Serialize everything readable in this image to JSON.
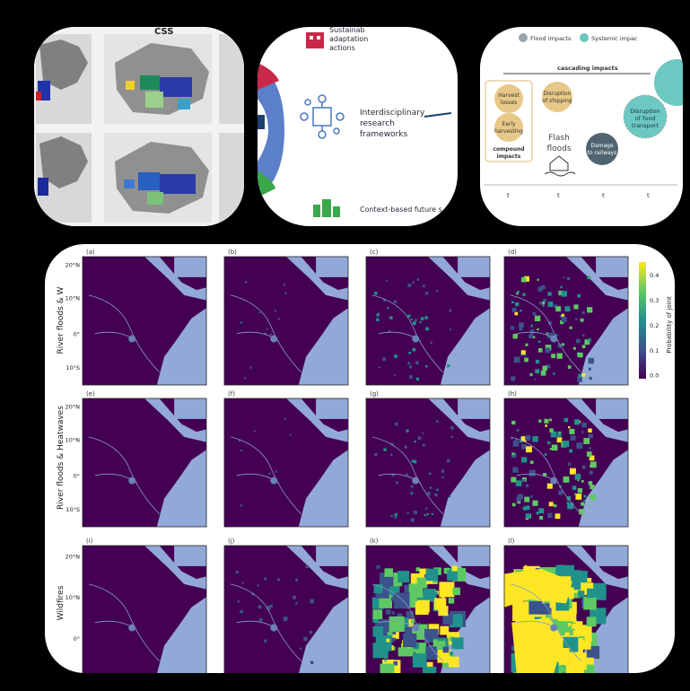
{
  "panel_maps": {
    "title_fragment": "CSS"
  },
  "panel_framework": {
    "item_top": "Sustainable adaptation actions",
    "item_mid_line1": "Interdisciplinary",
    "item_mid_line2": "research",
    "item_mid_line3": "frameworks",
    "item_bottom": "Context-based future s"
  },
  "panel_cascade": {
    "legend_flood": "Flood impacts",
    "legend_systemic": "Systemic impac",
    "cascading_label": "cascading impacts",
    "node_harvest": "Harvest losses",
    "node_early": "Early harvesting",
    "compound_label": "compound impacts",
    "node_disruption_ship": "Disruption of shipping",
    "flash_floods": "Flash floods",
    "node_damage_rail": "Damage to railways",
    "node_disruption_food": "Disruption of food transport",
    "time_axis": [
      "t",
      "t",
      "t",
      "t"
    ]
  },
  "grid": {
    "row_labels": [
      "River floods & W",
      "River floods & Heatwaves",
      "Wildfires"
    ],
    "panel_labels": [
      "(a)",
      "(b)",
      "(c)",
      "(d)",
      "(e)",
      "(f)",
      "(g)",
      "(h)",
      "(i)",
      "(j)",
      "(k)",
      "(l)"
    ],
    "lat_ticks_row1": [
      "20°N",
      "10°N",
      "0°",
      "10°S"
    ],
    "lat_ticks_row2": [
      "20°N",
      "10°N",
      "0°",
      "10°S"
    ],
    "lat_ticks_row3": [
      "20°N",
      "10°N",
      "0°"
    ],
    "colorbar_ticks": [
      "0.4",
      "0.3",
      "0.2",
      "0.1",
      "0.0"
    ],
    "colorbar_label": "Probability of joint",
    "colors": {
      "background": "#440154",
      "sea": "#92a9d8",
      "high": "#fde725",
      "mid": "#21918c"
    }
  }
}
